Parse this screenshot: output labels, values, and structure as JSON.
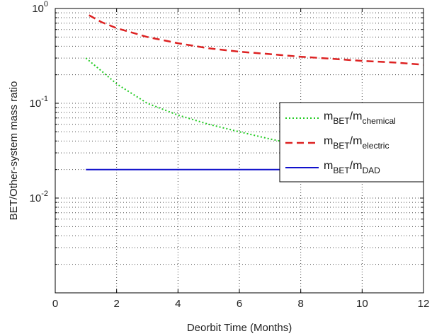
{
  "chart_data": {
    "type": "line",
    "title": "",
    "xlabel": "Deorbit Time (Months)",
    "ylabel": "BET/Other-system mass ratio",
    "xlim": [
      0,
      12
    ],
    "ylim": [
      0.001,
      1
    ],
    "yscale": "log",
    "grid": true,
    "legend_position": "right",
    "xticks": [
      0,
      2,
      4,
      6,
      8,
      10,
      12
    ],
    "xtick_labels": [
      "0",
      "2",
      "4",
      "6",
      "8",
      "10",
      "12"
    ],
    "ytick_labels": [
      {
        "base": "10",
        "exp": "0"
      },
      {
        "base": "10",
        "exp": "-1"
      },
      {
        "base": "10",
        "exp": "-2"
      }
    ],
    "series": [
      {
        "main": "m",
        "sub1": "BET",
        "sep": "/m",
        "sub2": "chemical",
        "color": "#22cc22",
        "style": "dotted",
        "x": [
          1,
          1.5,
          2,
          3,
          4,
          5,
          6,
          7,
          8,
          9,
          10,
          11,
          12
        ],
        "y": [
          0.3,
          0.22,
          0.16,
          0.1,
          0.075,
          0.06,
          0.05,
          0.042,
          0.036,
          0.032,
          0.029,
          0.026,
          0.024
        ]
      },
      {
        "main": "m",
        "sub1": "BET",
        "sep": "/m",
        "sub2": "electric",
        "color": "#dd2222",
        "style": "dashed",
        "x": [
          1.1,
          1.5,
          2,
          3,
          4,
          5,
          6,
          7,
          8,
          9,
          10,
          11,
          12
        ],
        "y": [
          0.85,
          0.72,
          0.62,
          0.5,
          0.43,
          0.38,
          0.35,
          0.33,
          0.31,
          0.295,
          0.28,
          0.27,
          0.255
        ]
      },
      {
        "main": "m",
        "sub1": "BET",
        "sep": "/m",
        "sub2": "DAD",
        "color": "#1111cc",
        "style": "solid",
        "x": [
          1,
          12
        ],
        "y": [
          0.02,
          0.02
        ]
      }
    ]
  }
}
